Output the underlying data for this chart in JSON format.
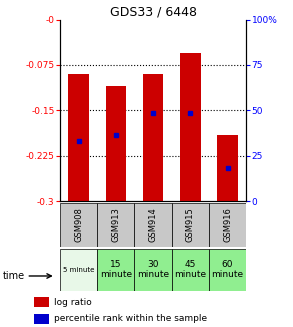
{
  "title": "GDS33 / 6448",
  "samples": [
    "GSM908",
    "GSM913",
    "GSM914",
    "GSM915",
    "GSM916"
  ],
  "times": [
    "5 minute",
    "15\nminute",
    "30\nminute",
    "45\nminute",
    "60\nminute"
  ],
  "time_colors": [
    "#e8f8e8",
    "#90ee90",
    "#90ee90",
    "#90ee90",
    "#90ee90"
  ],
  "log_ratios": [
    -0.09,
    -0.11,
    -0.09,
    -0.055,
    -0.19
  ],
  "bar_bottom": -0.3,
  "percentile_values": [
    -0.2,
    -0.19,
    -0.155,
    -0.155,
    -0.245
  ],
  "ylim_left": [
    -0.3,
    0
  ],
  "ylim_right": [
    0,
    100
  ],
  "yticks_left": [
    0,
    -0.075,
    -0.15,
    -0.225,
    -0.3
  ],
  "ytick_labels_left": [
    "-0",
    "-0.075",
    "-0.15",
    "-0.225",
    "-0.3"
  ],
  "yticks_right": [
    0,
    25,
    50,
    75,
    100
  ],
  "ytick_labels_right": [
    "0",
    "25",
    "50",
    "75",
    "100%"
  ],
  "bar_color": "#cc0000",
  "dot_color": "#0000cc",
  "bg_color": "#ffffff",
  "sample_bg": "#c8c8c8",
  "legend_log": "log ratio",
  "legend_pct": "percentile rank within the sample",
  "time_label": "time",
  "gridlines": [
    -0.075,
    -0.15,
    -0.225
  ]
}
